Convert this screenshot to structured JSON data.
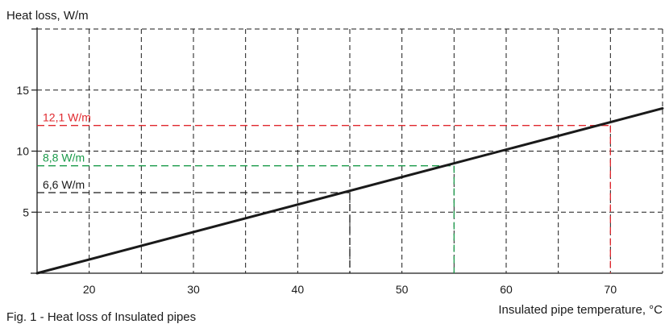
{
  "chart_data": {
    "type": "line",
    "title": "",
    "ylabel": "Heat loss, W/m",
    "xlabel": "Insulated pipe temperature, °C",
    "xlim": [
      15,
      75
    ],
    "ylim": [
      0,
      20
    ],
    "grid": true,
    "x_ticks": [
      15,
      20,
      25,
      30,
      35,
      40,
      45,
      50,
      55,
      60,
      65,
      70,
      75
    ],
    "x_tick_labels": [
      "20",
      "30",
      "40",
      "50",
      "60",
      "70"
    ],
    "x_tick_label_values": [
      20,
      30,
      40,
      50,
      60,
      70
    ],
    "y_ticks": [
      0,
      5,
      10,
      15,
      20
    ],
    "y_tick_labels": [
      "5",
      "10",
      "15"
    ],
    "y_tick_label_values": [
      5,
      10,
      15
    ],
    "series": [
      {
        "name": "",
        "color": "#1a1a1a",
        "x": [
          15,
          75
        ],
        "y": [
          0,
          13.5
        ]
      }
    ],
    "annotations": [
      {
        "label": "12,1 W/m",
        "x": 70,
        "y": 12.1,
        "color": "#e0282e"
      },
      {
        "label": "8,8 W/m",
        "x": 55,
        "y": 8.8,
        "color": "#1a9a4a"
      },
      {
        "label": "6,6 W/m",
        "x": 45,
        "y": 6.6,
        "color": "#1a1a1a"
      }
    ]
  },
  "caption": "Fig. 1 - Heat loss of Insulated pipes"
}
